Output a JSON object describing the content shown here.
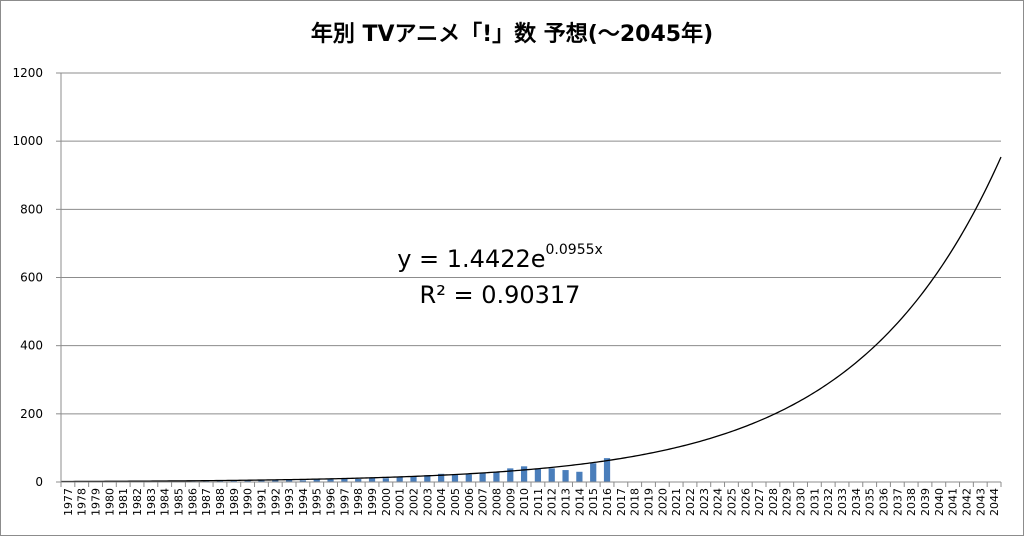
{
  "chart_data": {
    "type": "bar",
    "title": "年別 TVアニメ「!」数 予想(〜2045年)",
    "xlabel": "",
    "ylabel": "",
    "ylim": [
      0,
      1200
    ],
    "yticks": [
      0,
      200,
      400,
      600,
      800,
      1000,
      1200
    ],
    "grid": true,
    "legend": "none",
    "categories": [
      "1977",
      "1978",
      "1979",
      "1980",
      "1981",
      "1982",
      "1983",
      "1984",
      "1985",
      "1986",
      "1987",
      "1988",
      "1989",
      "1990",
      "1991",
      "1992",
      "1993",
      "1994",
      "1995",
      "1996",
      "1997",
      "1998",
      "1999",
      "2000",
      "2001",
      "2002",
      "2003",
      "2004",
      "2005",
      "2006",
      "2007",
      "2008",
      "2009",
      "2010",
      "2011",
      "2012",
      "2013",
      "2014",
      "2015",
      "2016",
      "2017",
      "2018",
      "2019",
      "2020",
      "2021",
      "2022",
      "2023",
      "2024",
      "2025",
      "2026",
      "2027",
      "2028",
      "2029",
      "2030",
      "2031",
      "2032",
      "2033",
      "2034",
      "2035",
      "2036",
      "2037",
      "2038",
      "2039",
      "2040",
      "2041",
      "2042",
      "2043",
      "2044"
    ],
    "series": [
      {
        "type": "bar",
        "color": "#4a7ebb",
        "values": [
          1,
          1,
          1,
          1,
          1,
          1,
          1,
          1,
          1,
          4,
          3,
          5,
          3,
          4,
          7,
          6,
          8,
          5,
          10,
          8,
          10,
          9,
          12,
          11,
          14,
          17,
          20,
          24,
          23,
          22,
          27,
          30,
          40,
          46,
          38,
          40,
          35,
          30,
          55,
          70,
          null,
          null,
          null,
          null,
          null,
          null,
          null,
          null,
          null,
          null,
          null,
          null,
          null,
          null,
          null,
          null,
          null,
          null,
          null,
          null,
          null,
          null,
          null,
          null,
          null,
          null,
          null,
          null
        ]
      },
      {
        "type": "line",
        "trendline": "exponential",
        "color": "#000000",
        "a": 1.4422,
        "b": 0.0955
      }
    ],
    "annotations": {
      "equation_prefix": "y = 1.4422e",
      "equation_exponent": "0.0955x",
      "r_squared": "R² = 0.90317"
    }
  }
}
